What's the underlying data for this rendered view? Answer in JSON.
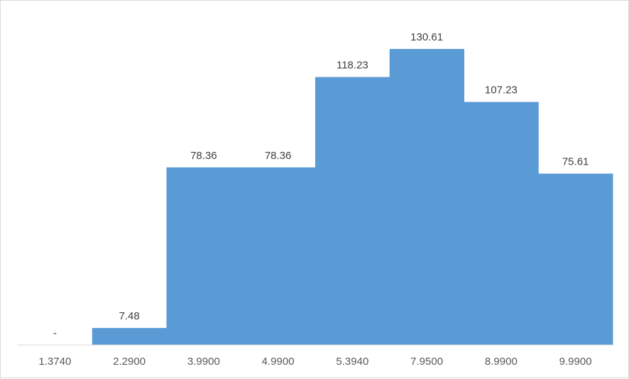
{
  "chart_data": {
    "type": "bar",
    "categories": [
      "1.3740",
      "2.2900",
      "3.9900",
      "4.9900",
      "5.3940",
      "7.9500",
      "8.9900",
      "9.9900"
    ],
    "values": [
      0,
      7.48,
      78.36,
      78.36,
      118.23,
      130.61,
      107.23,
      75.61
    ],
    "data_labels": [
      "-",
      "7.48",
      "78.36",
      "78.36",
      "118.23",
      "130.61",
      "107.23",
      "75.61"
    ],
    "title": "",
    "xlabel": "",
    "ylabel": "",
    "ylim": [
      0,
      140
    ],
    "grid": false,
    "legend": "none",
    "bar_color": "#5b9bd5",
    "gap_width": 0
  }
}
